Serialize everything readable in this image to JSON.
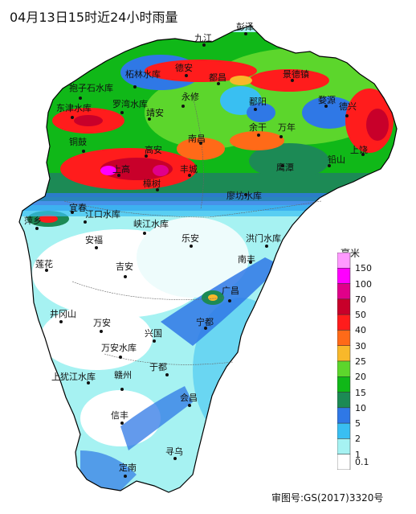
{
  "title": "04月13日15时近24小时雨量",
  "approval": "审图号:GS(2017)3320号",
  "legend": {
    "unit": "毫米",
    "items": [
      {
        "label": "150",
        "color": "#ff9aff"
      },
      {
        "label": "100",
        "color": "#ff00ff"
      },
      {
        "label": "70",
        "color": "#e0008a"
      },
      {
        "label": "50",
        "color": "#c8002a"
      },
      {
        "label": "40",
        "color": "#ff1c1c"
      },
      {
        "label": "30",
        "color": "#ff6a18"
      },
      {
        "label": "25",
        "color": "#f8b82a"
      },
      {
        "label": "20",
        "color": "#5cd62c"
      },
      {
        "label": "15",
        "color": "#10b818"
      },
      {
        "label": "10",
        "color": "#1c8a55"
      },
      {
        "label": "5",
        "color": "#2f78e6"
      },
      {
        "label": "2",
        "color": "#39bff2"
      },
      {
        "label": "1",
        "color": "#a6f2f2"
      },
      {
        "label": "0.1",
        "color": "#ffffff"
      }
    ]
  },
  "cities": [
    {
      "name": "彭泽"
    },
    {
      "name": "九江"
    },
    {
      "name": "柘林水库"
    },
    {
      "name": "德安"
    },
    {
      "name": "都昌"
    },
    {
      "name": "景德镇"
    },
    {
      "name": "抱子石水库"
    },
    {
      "name": "罗湾水库"
    },
    {
      "name": "永修"
    },
    {
      "name": "鄱阳"
    },
    {
      "name": "东津水库"
    },
    {
      "name": "靖安"
    },
    {
      "name": "婺源"
    },
    {
      "name": "德兴"
    },
    {
      "name": "余干"
    },
    {
      "name": "万年"
    },
    {
      "name": "铜鼓"
    },
    {
      "name": "南昌"
    },
    {
      "name": "高安"
    },
    {
      "name": "上饶"
    },
    {
      "name": "上高"
    },
    {
      "name": "丰城"
    },
    {
      "name": "鹰潭"
    },
    {
      "name": "铅山"
    },
    {
      "name": "樟树"
    },
    {
      "name": "廖坊水库"
    },
    {
      "name": "宜春"
    },
    {
      "name": "江口水库"
    },
    {
      "name": "萍乡"
    },
    {
      "name": "峡江水库"
    },
    {
      "name": "安福"
    },
    {
      "name": "乐安"
    },
    {
      "name": "洪门水库"
    },
    {
      "name": "莲花"
    },
    {
      "name": "吉安"
    },
    {
      "name": "南丰"
    },
    {
      "name": "广昌"
    },
    {
      "name": "井冈山"
    },
    {
      "name": "万安"
    },
    {
      "name": "宁都"
    },
    {
      "name": "兴国"
    },
    {
      "name": "万安水库"
    },
    {
      "name": "上犹江水库"
    },
    {
      "name": "于都"
    },
    {
      "name": "赣州"
    },
    {
      "name": "会昌"
    },
    {
      "name": "信丰"
    },
    {
      "name": "定南"
    },
    {
      "name": "寻乌"
    }
  ]
}
